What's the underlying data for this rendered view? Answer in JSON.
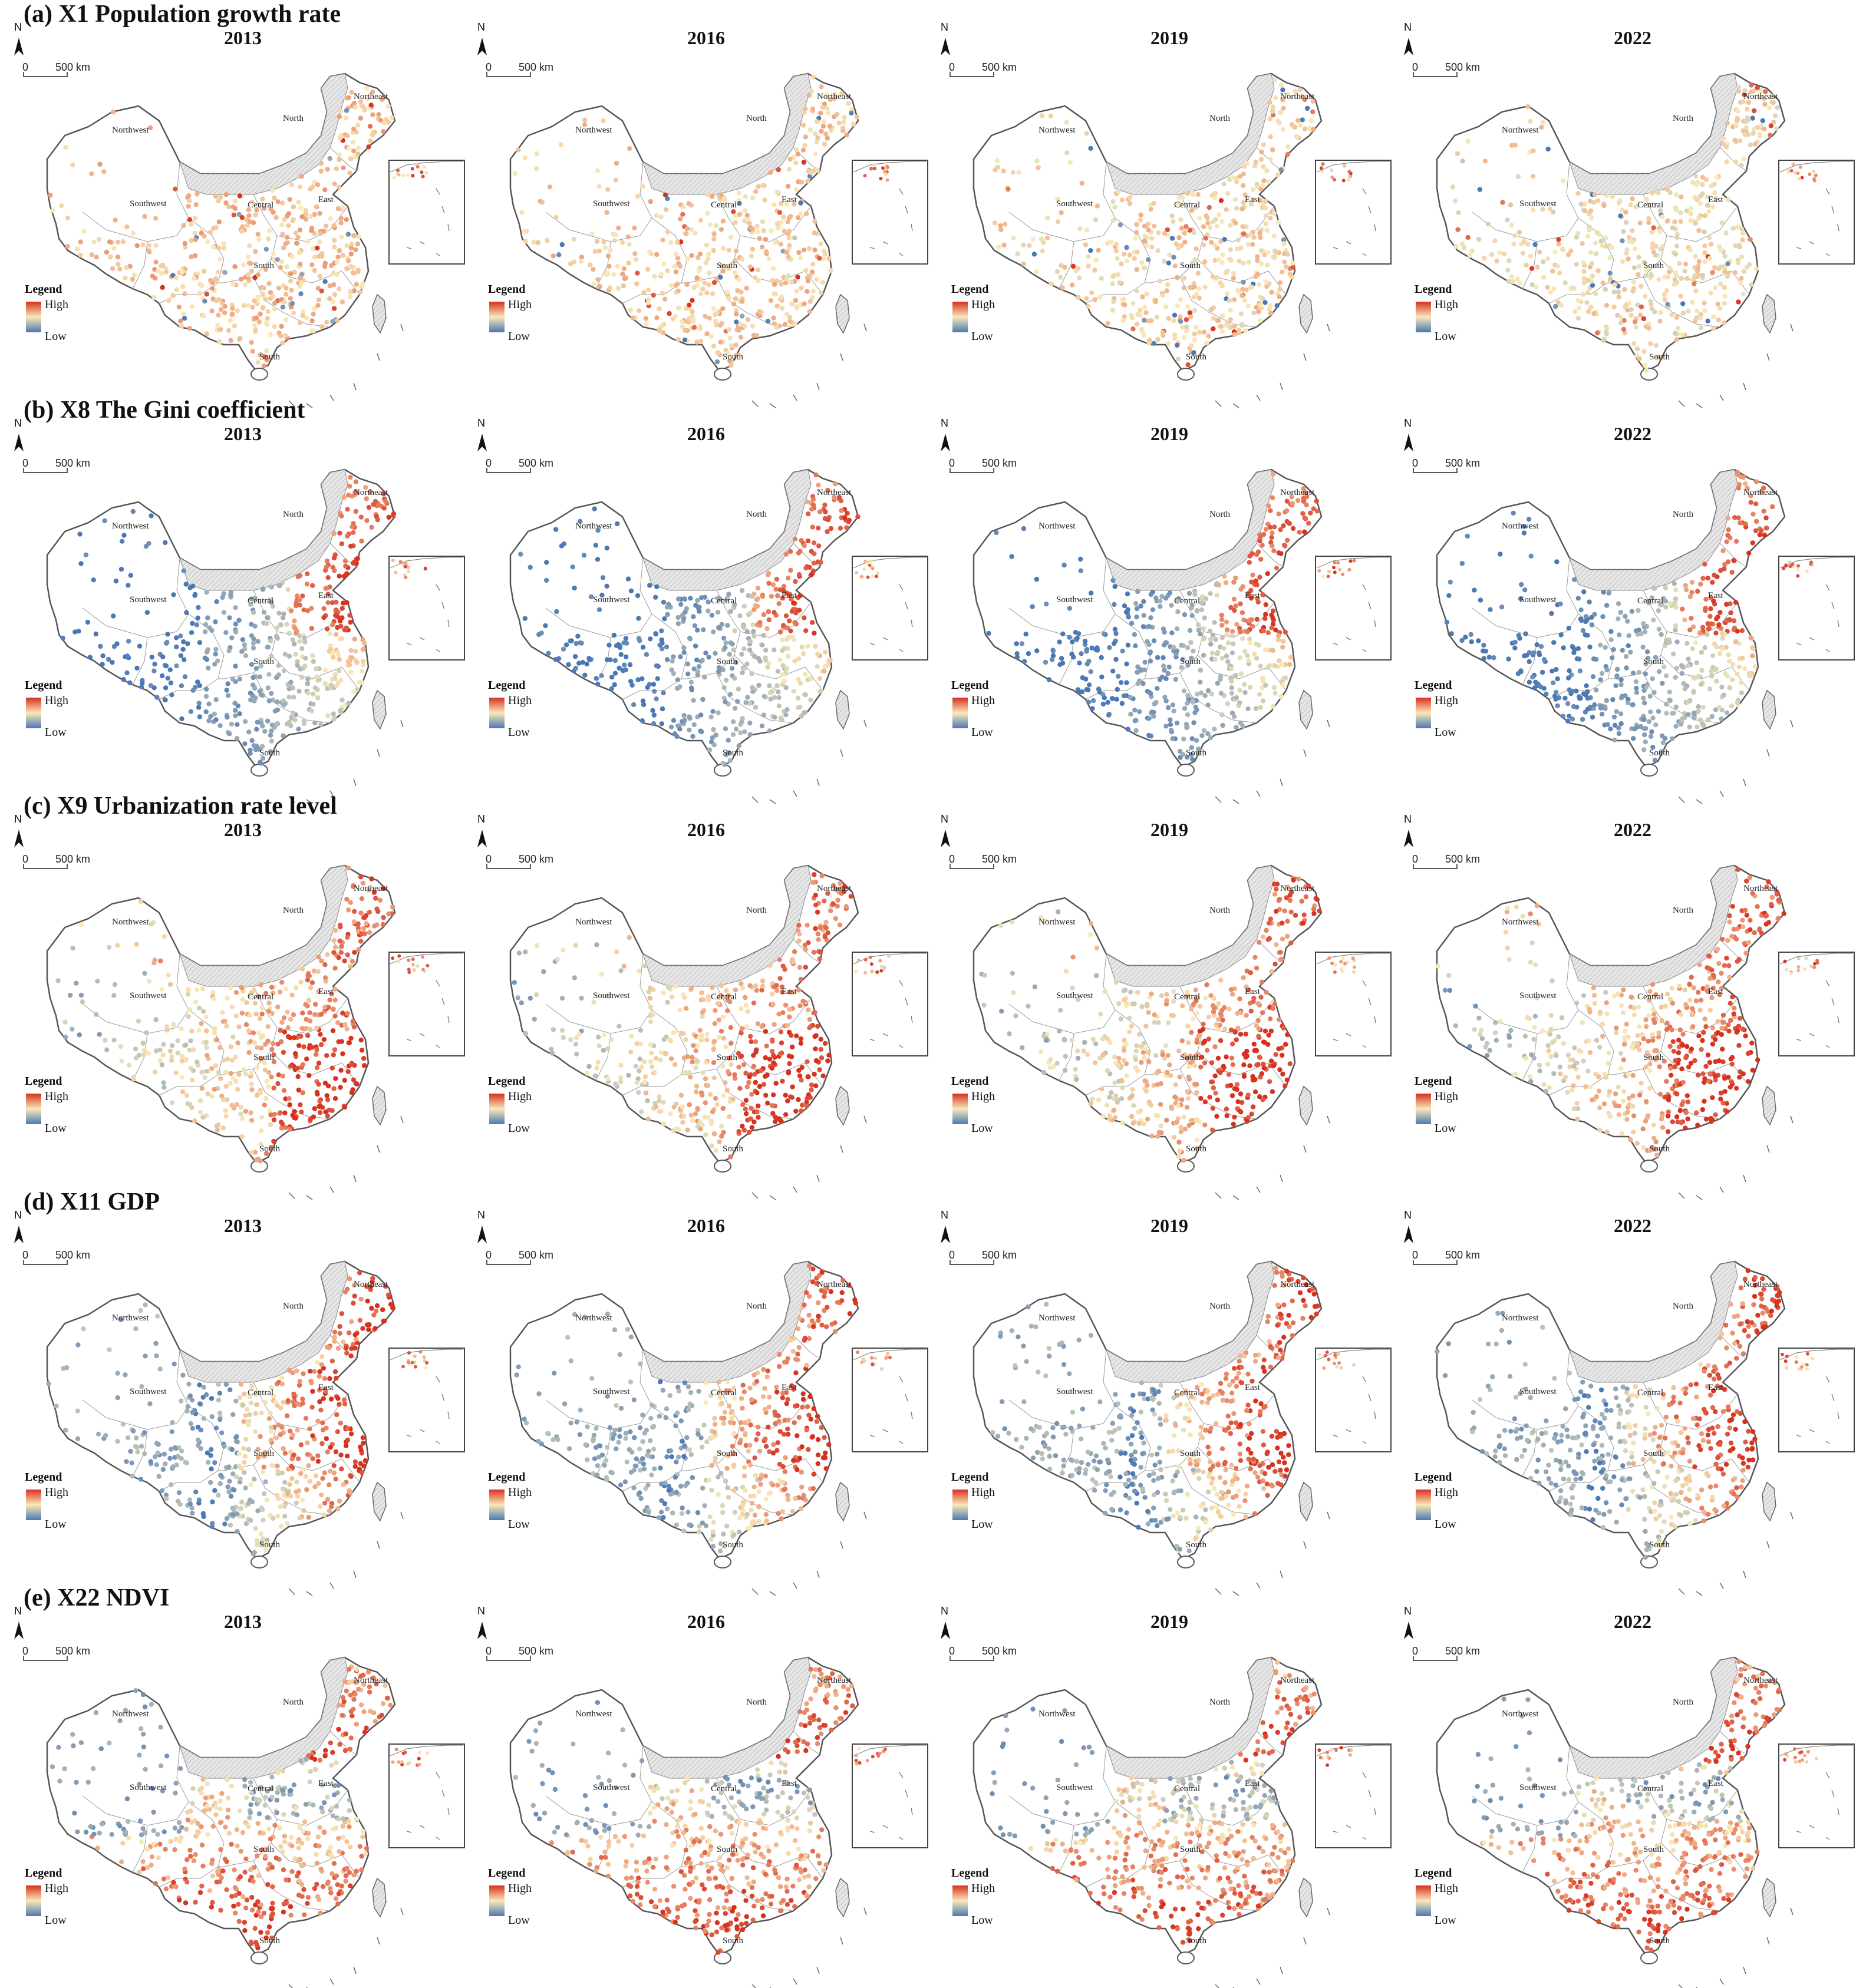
{
  "years": [
    "2013",
    "2016",
    "2019",
    "2022"
  ],
  "scale": {
    "zero": "0",
    "distance": "500 km"
  },
  "north_label": "N",
  "legend": {
    "title": "Legend",
    "high": "High",
    "low": "Low"
  },
  "region_labels": [
    "Northeast",
    "North",
    "Northwest",
    "Southwest",
    "Central",
    "East",
    "South",
    "South"
  ],
  "colors": {
    "high": "#d7301f",
    "mid": "#f9e9b8",
    "low": "#4a78b5",
    "hatch": "#d9d9d9",
    "border": "#555555"
  },
  "rows": [
    {
      "title": "(a) X1  Population growth rate",
      "theme": "popgrowth"
    },
    {
      "title": "(b) X8  The Gini coefficient",
      "theme": "gini"
    },
    {
      "title": "(c) X9  Urbanization rate level",
      "theme": "urban"
    },
    {
      "title": "(d) X11  GDP",
      "theme": "gdp"
    },
    {
      "title": "(e) X22  NDVI",
      "theme": "ndvi"
    }
  ]
}
